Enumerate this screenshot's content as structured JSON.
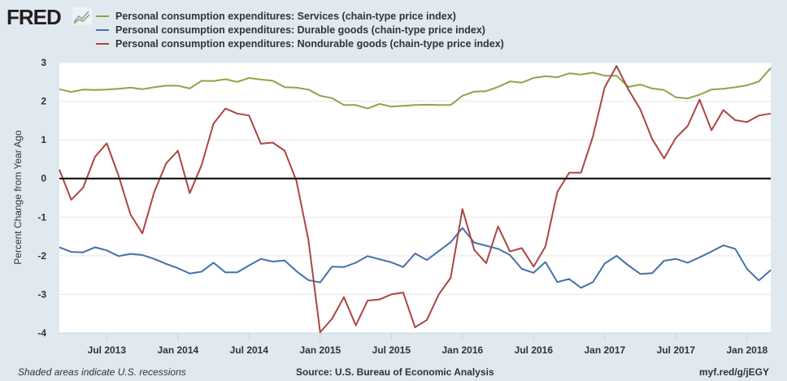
{
  "header": {
    "logo_text": "FRED"
  },
  "footer": {
    "recession_note": "Shaded areas indicate U.S. recessions",
    "source": "Source: U.S. Bureau of Economic Analysis",
    "short_url": "myf.red/g/jEGY"
  },
  "chart_data": {
    "type": "line",
    "ylabel": "Percent Change from Year Ago",
    "ylim": [
      -4,
      3
    ],
    "yticks": [
      3,
      2,
      1,
      0,
      -1,
      -2,
      -3,
      -4
    ],
    "x_start": "2013-03",
    "x_end": "2018-03",
    "x_frequency": "monthly",
    "xtick_labels": [
      "Jul 2013",
      "Jan 2014",
      "Jul 2014",
      "Jan 2015",
      "Jul 2015",
      "Jan 2016",
      "Jul 2016",
      "Jan 2017",
      "Jul 2017",
      "Jan 2018"
    ],
    "grid": true,
    "zero_line": true,
    "legend_position": "top-left",
    "series": [
      {
        "name": "Personal consumption expenditures: Services (chain-type price index)",
        "color": "#8aa745",
        "values": [
          2.31,
          2.24,
          2.3,
          2.29,
          2.3,
          2.32,
          2.35,
          2.31,
          2.36,
          2.4,
          2.4,
          2.33,
          2.53,
          2.52,
          2.57,
          2.5,
          2.6,
          2.56,
          2.53,
          2.36,
          2.35,
          2.3,
          2.14,
          2.08,
          1.9,
          1.9,
          1.81,
          1.93,
          1.86,
          1.88,
          1.9,
          1.91,
          1.9,
          1.9,
          2.14,
          2.25,
          2.26,
          2.37,
          2.51,
          2.48,
          2.6,
          2.65,
          2.62,
          2.72,
          2.69,
          2.74,
          2.66,
          2.66,
          2.37,
          2.43,
          2.33,
          2.29,
          2.1,
          2.07,
          2.17,
          2.3,
          2.32,
          2.36,
          2.41,
          2.51,
          2.86
        ]
      },
      {
        "name": "Personal consumption expenditures: Durable goods (chain-type price index)",
        "color": "#4572a7",
        "values": [
          -1.78,
          -1.9,
          -1.91,
          -1.78,
          -1.86,
          -2.01,
          -1.95,
          -1.98,
          -2.08,
          -2.21,
          -2.32,
          -2.46,
          -2.41,
          -2.18,
          -2.43,
          -2.43,
          -2.25,
          -2.08,
          -2.15,
          -2.12,
          -2.4,
          -2.63,
          -2.69,
          -2.28,
          -2.29,
          -2.18,
          -2.01,
          -2.09,
          -2.17,
          -2.29,
          -1.94,
          -2.11,
          -1.88,
          -1.65,
          -1.28,
          -1.66,
          -1.74,
          -1.82,
          -1.98,
          -2.34,
          -2.44,
          -2.16,
          -2.68,
          -2.6,
          -2.83,
          -2.68,
          -2.2,
          -2.0,
          -2.25,
          -2.47,
          -2.45,
          -2.13,
          -2.08,
          -2.18,
          -2.04,
          -1.89,
          -1.73,
          -1.82,
          -2.34,
          -2.64,
          -2.37
        ]
      },
      {
        "name": "Personal consumption expenditures: Nondurable goods (chain-type price index)",
        "color": "#aa4643",
        "values": [
          0.23,
          -0.55,
          -0.24,
          0.56,
          0.91,
          0.07,
          -0.93,
          -1.42,
          -0.35,
          0.39,
          0.72,
          -0.38,
          0.35,
          1.42,
          1.81,
          1.68,
          1.63,
          0.9,
          0.93,
          0.72,
          -0.07,
          -1.58,
          -3.98,
          -3.63,
          -3.07,
          -3.8,
          -3.16,
          -3.13,
          -3.0,
          -2.95,
          -3.85,
          -3.66,
          -3.0,
          -2.57,
          -0.79,
          -1.85,
          -2.19,
          -1.24,
          -1.89,
          -1.8,
          -2.28,
          -1.76,
          -0.35,
          0.15,
          0.15,
          1.09,
          2.36,
          2.91,
          2.3,
          1.79,
          1.02,
          0.52,
          1.05,
          1.36,
          2.04,
          1.25,
          1.77,
          1.51,
          1.46,
          1.63,
          1.68
        ]
      }
    ]
  }
}
